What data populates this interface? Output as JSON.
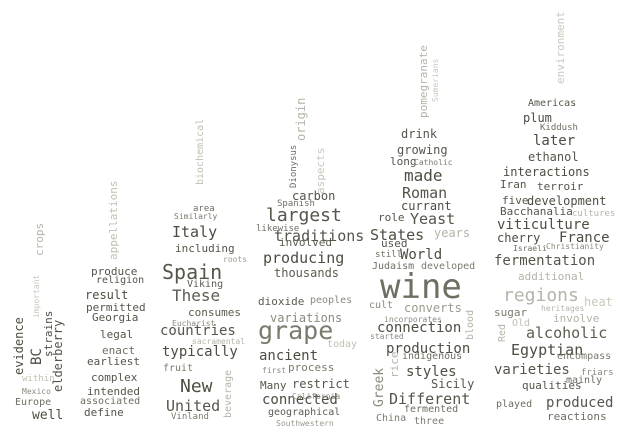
{
  "words": [
    {
      "text": "wine",
      "color": "#6e6e62"
    },
    {
      "text": "grape",
      "color": "#7a7a6e"
    },
    {
      "text": "regions",
      "color": "#b4b4a8"
    },
    {
      "text": "Spain",
      "color": "#55554a"
    },
    {
      "text": "New",
      "color": "#4d4d42"
    },
    {
      "text": "United",
      "color": "#55554a"
    },
    {
      "text": "These",
      "color": "#5c5c50"
    },
    {
      "text": "Italy",
      "color": "#4d4d42"
    },
    {
      "text": "largest",
      "color": "#55554a"
    },
    {
      "text": "made",
      "color": "#4d4d42"
    },
    {
      "text": "Roman",
      "color": "#55554a"
    },
    {
      "text": "Yeast",
      "color": "#55554a"
    },
    {
      "text": "States",
      "color": "#4d4d42"
    },
    {
      "text": "World",
      "color": "#4d4d42"
    },
    {
      "text": "production",
      "color": "#4d4d42"
    },
    {
      "text": "connection",
      "color": "#4d4d42"
    },
    {
      "text": "styles",
      "color": "#4d4d42"
    },
    {
      "text": "Different",
      "color": "#55554a"
    },
    {
      "text": "later",
      "color": "#4d4d42"
    },
    {
      "text": "viticulture",
      "color": "#4d4d42"
    },
    {
      "text": "France",
      "color": "#4d4d42"
    },
    {
      "text": "fermentation",
      "color": "#55554a"
    },
    {
      "text": "alcoholic",
      "color": "#5c5c50"
    },
    {
      "text": "Egyptian",
      "color": "#4d4d42"
    },
    {
      "text": "varieties",
      "color": "#55554a"
    },
    {
      "text": "produced",
      "color": "#55554a"
    },
    {
      "text": "producing",
      "color": "#4d4d42"
    },
    {
      "text": "traditions",
      "color": "#55554a"
    },
    {
      "text": "countries",
      "color": "#55554a"
    },
    {
      "text": "typically",
      "color": "#4d4d42"
    },
    {
      "text": "ancient",
      "color": "#4d4d42"
    },
    {
      "text": "connected",
      "color": "#4d4d42"
    },
    {
      "text": "including",
      "color": "#55554a"
    },
    {
      "text": "thousands",
      "color": "#5c5c50"
    },
    {
      "text": "involved",
      "color": "#5c5c50"
    },
    {
      "text": "dioxide",
      "color": "#5c5c50"
    },
    {
      "text": "carbon",
      "color": "#55554a"
    },
    {
      "text": "Spanish",
      "color": "#6e6e62"
    },
    {
      "text": "variations",
      "color": "#8a8a7e"
    },
    {
      "text": "process",
      "color": "#7a7a6e"
    },
    {
      "text": "restrict",
      "color": "#55554a"
    },
    {
      "text": "Many",
      "color": "#55554a"
    },
    {
      "text": "geographical",
      "color": "#5c5c50"
    },
    {
      "text": "California",
      "color": "#8a8a7e"
    },
    {
      "text": "Southwestern",
      "color": "#9a9a8e"
    },
    {
      "text": "first",
      "color": "#8a8a7e"
    },
    {
      "text": "Dionysus",
      "color": "#6e6e62"
    },
    {
      "text": "origin",
      "color": "#b4b4a8"
    },
    {
      "text": "aspects",
      "color": "#c8c8bc"
    },
    {
      "text": "likewise",
      "color": "#6e6e62"
    },
    {
      "text": "peoples",
      "color": "#8a8a7e"
    },
    {
      "text": "today",
      "color": "#c0c0b4"
    },
    {
      "text": "biochemical",
      "color": "#c0c0b4"
    },
    {
      "text": "area",
      "color": "#6e6e62"
    },
    {
      "text": "Similarly",
      "color": "#7a7a6e"
    },
    {
      "text": "roots",
      "color": "#9a9a8e"
    },
    {
      "text": "Viking",
      "color": "#5c5c50"
    },
    {
      "text": "consumes",
      "color": "#5c5c50"
    },
    {
      "text": "Eucharist",
      "color": "#8a8a7e"
    },
    {
      "text": "sacramental",
      "color": "#b4b4a8"
    },
    {
      "text": "fruit",
      "color": "#7a7a6e"
    },
    {
      "text": "beverage",
      "color": "#b4b4a8"
    },
    {
      "text": "Vinland",
      "color": "#7a7a6e"
    },
    {
      "text": "produce",
      "color": "#55554a"
    },
    {
      "text": "religion",
      "color": "#55554a"
    },
    {
      "text": "result",
      "color": "#4d4d42"
    },
    {
      "text": "Georgia",
      "color": "#55554a"
    },
    {
      "text": "permitted",
      "color": "#55554a"
    },
    {
      "text": "legal",
      "color": "#55554a"
    },
    {
      "text": "enact",
      "color": "#6e6e62"
    },
    {
      "text": "earliest",
      "color": "#55554a"
    },
    {
      "text": "complex",
      "color": "#55554a"
    },
    {
      "text": "intended",
      "color": "#55554a"
    },
    {
      "text": "associated",
      "color": "#6e6e62"
    },
    {
      "text": "define",
      "color": "#55554a"
    },
    {
      "text": "appellations",
      "color": "#c0c0b4"
    },
    {
      "text": "crops",
      "color": "#b4b4a8"
    },
    {
      "text": "important",
      "color": "#c8c8bc"
    },
    {
      "text": "strains",
      "color": "#4d4d42"
    },
    {
      "text": "BC",
      "color": "#4d4d42"
    },
    {
      "text": "evidence",
      "color": "#4d4d42"
    },
    {
      "text": "elderberry",
      "color": "#55554a"
    },
    {
      "text": "Europe",
      "color": "#6e6e62"
    },
    {
      "text": "Mexico",
      "color": "#8a8a7e"
    },
    {
      "text": "within",
      "color": "#c0c0b4"
    },
    {
      "text": "well",
      "color": "#4d4d42"
    },
    {
      "text": "drink",
      "color": "#55554a"
    },
    {
      "text": "growing",
      "color": "#55554a"
    },
    {
      "text": "long",
      "color": "#55554a"
    },
    {
      "text": "Catholic",
      "color": "#7a7a6e"
    },
    {
      "text": "currant",
      "color": "#4d4d42"
    },
    {
      "text": "role",
      "color": "#55554a"
    },
    {
      "text": "used",
      "color": "#55554a"
    },
    {
      "text": "years",
      "color": "#b4b4a8"
    },
    {
      "text": "Judaism",
      "color": "#6e6e62"
    },
    {
      "text": "still",
      "color": "#6e6e62"
    },
    {
      "text": "developed",
      "color": "#7a7a6e"
    },
    {
      "text": "cult",
      "color": "#8a8a7e"
    },
    {
      "text": "converts",
      "color": "#9a9a8e"
    },
    {
      "text": "incorporates",
      "color": "#8a8a7e"
    },
    {
      "text": "started",
      "color": "#8a8a7e"
    },
    {
      "text": "indigenous",
      "color": "#6e6e62"
    },
    {
      "text": "Greek",
      "color": "#8a8a7e"
    },
    {
      "text": "rice",
      "color": "#b4b4a8"
    },
    {
      "text": "Sicily",
      "color": "#55554a"
    },
    {
      "text": "fermented",
      "color": "#6e6e62"
    },
    {
      "text": "China",
      "color": "#7a7a6e"
    },
    {
      "text": "three",
      "color": "#7a7a6e"
    },
    {
      "text": "blood",
      "color": "#b4b4a8"
    },
    {
      "text": "pomegranate",
      "color": "#b4b4a8"
    },
    {
      "text": "Sumerians",
      "color": "#c8c8bc"
    },
    {
      "text": "Americas",
      "color": "#55554a"
    },
    {
      "text": "plum",
      "color": "#4d4d42"
    },
    {
      "text": "Kiddush",
      "color": "#6e6e62"
    },
    {
      "text": "ethanol",
      "color": "#55554a"
    },
    {
      "text": "interactions",
      "color": "#4d4d42"
    },
    {
      "text": "Iran",
      "color": "#55554a"
    },
    {
      "text": "terroir",
      "color": "#55554a"
    },
    {
      "text": "five",
      "color": "#55554a"
    },
    {
      "text": "development",
      "color": "#4d4d42"
    },
    {
      "text": "Bacchanalia",
      "color": "#55554a"
    },
    {
      "text": "cultures",
      "color": "#b4b4a8"
    },
    {
      "text": "cherry",
      "color": "#4d4d42"
    },
    {
      "text": "Israeli",
      "color": "#6e6e62"
    },
    {
      "text": "Christianity",
      "color": "#8a8a7e"
    },
    {
      "text": "additional",
      "color": "#b4b4a8"
    },
    {
      "text": "heat",
      "color": "#c8c8bc"
    },
    {
      "text": "sugar",
      "color": "#7a7a6e"
    },
    {
      "text": "involve",
      "color": "#b4b4a8"
    },
    {
      "text": "heritages",
      "color": "#b4b4a8"
    },
    {
      "text": "Old",
      "color": "#c0c0b4"
    },
    {
      "text": "Red",
      "color": "#b4b4a8"
    },
    {
      "text": "encompass",
      "color": "#7a7a6e"
    },
    {
      "text": "qualities",
      "color": "#55554a"
    },
    {
      "text": "mainly",
      "color": "#6e6e62"
    },
    {
      "text": "friars",
      "color": "#8a8a7e"
    },
    {
      "text": "played",
      "color": "#6e6e62"
    },
    {
      "text": "reactions",
      "color": "#6e6e62"
    },
    {
      "text": "environment",
      "color": "#c8c8bc"
    }
  ]
}
